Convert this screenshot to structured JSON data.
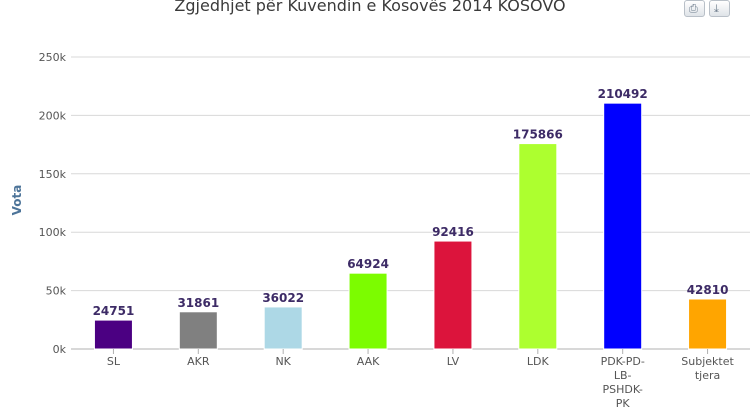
{
  "colors": {
    "grid": "#d8d8d8",
    "axis": "#b0b0b0"
  },
  "toolbar": {
    "print_icon": "printer-icon",
    "export_icon": "download-icon"
  },
  "chart_data": {
    "type": "bar",
    "title": "Zgjedhjet për Kuvendin e Kosovës 2014 KOSOVO",
    "ylabel": "Vota",
    "xlabel": "",
    "ylim": [
      0,
      250000
    ],
    "y_ticks": [
      {
        "value": 0,
        "label": "0k"
      },
      {
        "value": 50000,
        "label": "50k"
      },
      {
        "value": 100000,
        "label": "100k"
      },
      {
        "value": 150000,
        "label": "150k"
      },
      {
        "value": 200000,
        "label": "200k"
      },
      {
        "value": 250000,
        "label": "250k"
      }
    ],
    "grid": true,
    "categories": [
      [
        "SL"
      ],
      [
        "AKR"
      ],
      [
        "NK"
      ],
      [
        "AAK"
      ],
      [
        "LV"
      ],
      [
        "LDK"
      ],
      [
        "PDK-PD-",
        "LB-",
        "PSHDK-",
        "PK"
      ],
      [
        "Subjektet",
        "tjera"
      ]
    ],
    "values": [
      24751,
      31861,
      36022,
      64924,
      92416,
      175866,
      210492,
      42810
    ],
    "colors": [
      "#4b0082",
      "#808080",
      "#add8e6",
      "#7cfc00",
      "#dc143c",
      "#adff2f",
      "#0000ff",
      "#ffa500"
    ]
  }
}
